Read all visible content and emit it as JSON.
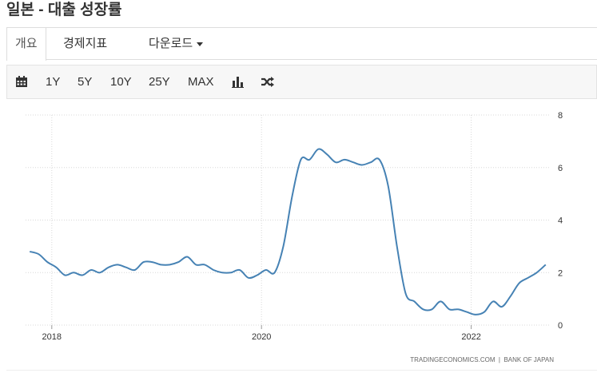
{
  "page": {
    "title": "일본 - 대출 성장률"
  },
  "tabs": [
    {
      "label": "개요",
      "active": true
    },
    {
      "label": "경제지표",
      "active": false
    },
    {
      "label": "다운로드",
      "active": false,
      "dropdown": true
    }
  ],
  "toolbar": {
    "calendar_icon": "calendar-icon",
    "ranges": [
      "1Y",
      "5Y",
      "10Y",
      "25Y",
      "MAX"
    ],
    "chart_type_icon": "bar-chart-icon",
    "compare_icon": "shuffle-icon"
  },
  "chart_data": {
    "type": "line",
    "title": "",
    "xlabel": "",
    "ylabel": "",
    "xlim": [
      2017.75,
      2022.75
    ],
    "ylim": [
      0,
      8
    ],
    "y_ticks": [
      0,
      2,
      4,
      6,
      8
    ],
    "x_ticks": [
      2018,
      2020,
      2022
    ],
    "x_tick_labels": [
      "2018",
      "2020",
      "2022"
    ],
    "grid": true,
    "line_color": "#4682b4",
    "source": "TRADINGECONOMICS.COM  |  BANK OF JAPAN",
    "series": [
      {
        "name": "",
        "x": [
          2017.79,
          2017.875,
          2017.958,
          2018.042,
          2018.125,
          2018.208,
          2018.292,
          2018.375,
          2018.458,
          2018.542,
          2018.625,
          2018.708,
          2018.792,
          2018.875,
          2018.958,
          2019.042,
          2019.125,
          2019.208,
          2019.292,
          2019.375,
          2019.458,
          2019.542,
          2019.625,
          2019.708,
          2019.792,
          2019.875,
          2019.958,
          2020.042,
          2020.125,
          2020.208,
          2020.292,
          2020.375,
          2020.458,
          2020.542,
          2020.625,
          2020.708,
          2020.792,
          2020.875,
          2020.958,
          2021.042,
          2021.125,
          2021.208,
          2021.292,
          2021.375,
          2021.458,
          2021.542,
          2021.625,
          2021.708,
          2021.792,
          2021.875,
          2021.958,
          2022.042,
          2022.125,
          2022.208,
          2022.292,
          2022.375,
          2022.458,
          2022.542,
          2022.625,
          2022.71
        ],
        "values": [
          2.8,
          2.7,
          2.4,
          2.2,
          1.9,
          2.0,
          1.9,
          2.1,
          2.0,
          2.2,
          2.3,
          2.2,
          2.1,
          2.4,
          2.4,
          2.3,
          2.3,
          2.4,
          2.6,
          2.3,
          2.3,
          2.1,
          2.0,
          2.0,
          2.1,
          1.8,
          1.9,
          2.1,
          2.0,
          3.0,
          4.9,
          6.3,
          6.3,
          6.7,
          6.5,
          6.2,
          6.3,
          6.2,
          6.1,
          6.2,
          6.3,
          5.3,
          3.0,
          1.2,
          0.9,
          0.6,
          0.6,
          0.9,
          0.6,
          0.6,
          0.5,
          0.4,
          0.5,
          0.9,
          0.7,
          1.1,
          1.6,
          1.8,
          2.0,
          2.3
        ]
      }
    ]
  }
}
